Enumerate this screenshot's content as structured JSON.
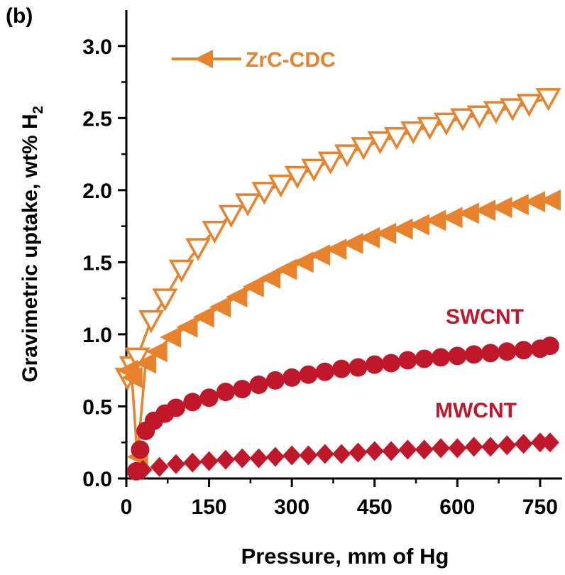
{
  "chart_data": {
    "type": "scatter",
    "panel_label": "(b)",
    "title": "",
    "xlabel": "Pressure, mm of Hg",
    "ylabel_main": "Gravimetric uptake, wt% H",
    "ylabel_sub": "2",
    "xlim": [
      0,
      790
    ],
    "ylim": [
      0,
      3.25
    ],
    "x_ticks": [
      0,
      150,
      300,
      450,
      600,
      750
    ],
    "y_ticks": [
      0.0,
      0.5,
      1.0,
      1.5,
      2.0,
      2.5,
      3.0
    ],
    "x_tick_labels": [
      "0",
      "150",
      "300",
      "450",
      "600",
      "750"
    ],
    "y_tick_labels": [
      "0.0",
      "0.5",
      "1.0",
      "1.5",
      "2.0",
      "2.5",
      "3.0"
    ],
    "grid": false,
    "legend": {
      "position": "top-left",
      "entries": [
        {
          "label": "ZrC-CDC",
          "marker": "left-triangle-filled",
          "color": "#E8822D"
        }
      ]
    },
    "annotations": [
      {
        "text": "SWCNT",
        "color": "#C0182A"
      },
      {
        "text": "MWCNT",
        "color": "#C0182A"
      }
    ],
    "series": [
      {
        "marker": "down-triangle-open",
        "color": "#E8822D",
        "connected": true,
        "x": [
          2,
          10,
          20,
          45,
          70,
          100,
          130,
          160,
          190,
          220,
          250,
          280,
          310,
          340,
          370,
          400,
          430,
          460,
          490,
          520,
          550,
          580,
          610,
          640,
          670,
          700,
          730,
          765
        ],
        "y": [
          0.7,
          0.78,
          0.84,
          1.1,
          1.25,
          1.45,
          1.6,
          1.72,
          1.83,
          1.91,
          1.99,
          2.04,
          2.1,
          2.15,
          2.2,
          2.25,
          2.3,
          2.34,
          2.37,
          2.41,
          2.44,
          2.47,
          2.5,
          2.52,
          2.55,
          2.57,
          2.6,
          2.64
        ]
      },
      {
        "marker": "left-triangle-filled",
        "color": "#E8822D",
        "connected": true,
        "x": [
          2,
          10,
          20,
          35,
          55,
          80,
          110,
          140,
          170,
          200,
          230,
          260,
          290,
          320,
          350,
          380,
          410,
          440,
          470,
          500,
          530,
          560,
          590,
          620,
          650,
          680,
          710,
          740,
          768
        ],
        "y": [
          0.75,
          0.7,
          0.15,
          0.8,
          0.88,
          0.98,
          1.05,
          1.12,
          1.19,
          1.26,
          1.33,
          1.39,
          1.45,
          1.5,
          1.55,
          1.59,
          1.63,
          1.67,
          1.7,
          1.73,
          1.76,
          1.79,
          1.81,
          1.84,
          1.86,
          1.88,
          1.9,
          1.92,
          1.93
        ]
      },
      {
        "name": "SWCNT",
        "marker": "circle-filled",
        "color": "#C0182A",
        "connected": false,
        "x": [
          18,
          25,
          35,
          50,
          70,
          90,
          120,
          150,
          180,
          210,
          240,
          270,
          300,
          330,
          360,
          390,
          420,
          450,
          480,
          510,
          540,
          570,
          600,
          630,
          660,
          690,
          720,
          750,
          768
        ],
        "y": [
          0.05,
          0.2,
          0.33,
          0.4,
          0.45,
          0.49,
          0.53,
          0.56,
          0.6,
          0.62,
          0.65,
          0.68,
          0.7,
          0.72,
          0.74,
          0.76,
          0.77,
          0.79,
          0.8,
          0.82,
          0.83,
          0.84,
          0.85,
          0.86,
          0.87,
          0.88,
          0.89,
          0.9,
          0.92
        ]
      },
      {
        "name": "MWCNT",
        "marker": "diamond-filled",
        "color": "#C0182A",
        "connected": false,
        "x": [
          30,
          60,
          90,
          120,
          150,
          180,
          210,
          240,
          270,
          300,
          330,
          360,
          390,
          420,
          450,
          480,
          510,
          540,
          570,
          600,
          630,
          660,
          690,
          720,
          750,
          768
        ],
        "y": [
          0.06,
          0.08,
          0.1,
          0.11,
          0.12,
          0.13,
          0.14,
          0.14,
          0.15,
          0.16,
          0.16,
          0.17,
          0.17,
          0.18,
          0.19,
          0.19,
          0.2,
          0.2,
          0.21,
          0.21,
          0.22,
          0.22,
          0.23,
          0.24,
          0.25,
          0.25
        ]
      }
    ]
  }
}
